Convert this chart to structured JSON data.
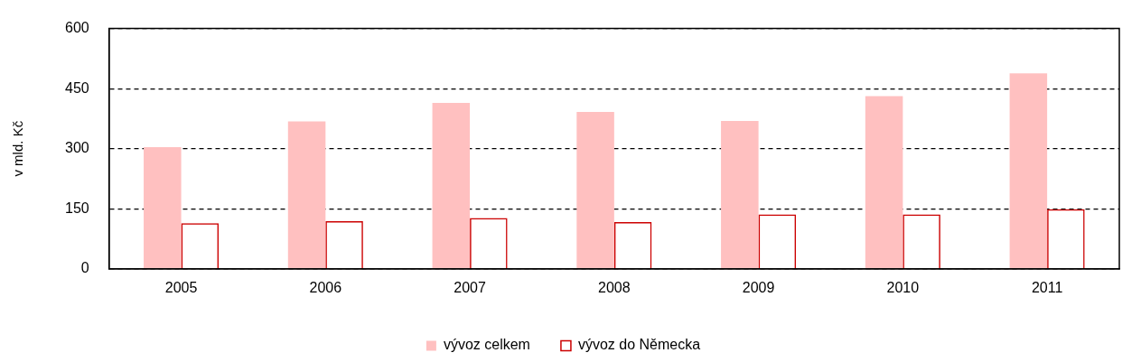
{
  "chart_data": {
    "type": "bar",
    "ylabel": "v mld. Kč",
    "categories": [
      "2005",
      "2006",
      "2007",
      "2008",
      "2009",
      "2010",
      "2011"
    ],
    "series": [
      {
        "name": "vývoz celkem",
        "color": "#ffc0c0",
        "values": [
          304,
          368,
          414,
          392,
          369,
          431,
          488
        ]
      },
      {
        "name": "vývoz do Německa",
        "color": "#cc0000",
        "values": [
          114,
          119,
          127,
          117,
          136,
          136,
          149
        ]
      }
    ],
    "ylim": [
      0,
      600
    ],
    "yticks": [
      0,
      150,
      300,
      450,
      600
    ],
    "grid": "y",
    "legend": "bottom"
  }
}
